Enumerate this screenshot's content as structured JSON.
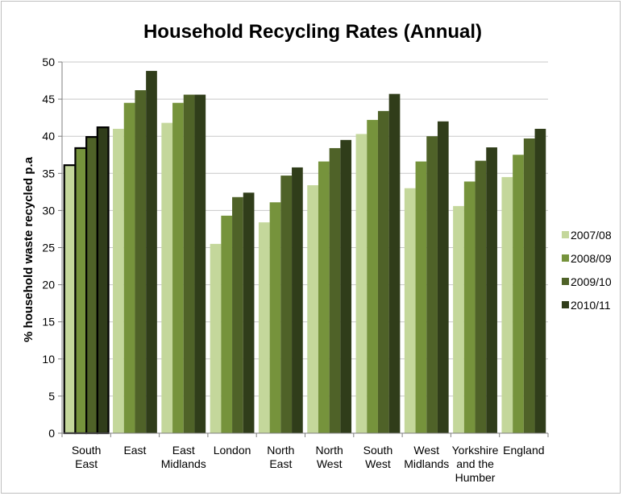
{
  "chart_data": {
    "type": "bar",
    "title": "Household Recycling Rates (Annual)",
    "ylabel": "% household waste recycled p.a",
    "xlabel": "",
    "ylim": [
      0,
      50
    ],
    "yticks": [
      0,
      5,
      10,
      15,
      20,
      25,
      30,
      35,
      40,
      45,
      50
    ],
    "grid": true,
    "legend": "right",
    "categories": [
      [
        "South",
        "East"
      ],
      [
        "East"
      ],
      [
        "East",
        "Midlands"
      ],
      [
        "London"
      ],
      [
        "North",
        "East"
      ],
      [
        "North",
        "West"
      ],
      [
        "South",
        "West"
      ],
      [
        "West",
        "Midlands"
      ],
      [
        "Yorkshire",
        "and the",
        "Humber"
      ],
      [
        "England"
      ]
    ],
    "highlighted_category": 0,
    "series": [
      {
        "name": "2007/08",
        "color": "#c4d79b",
        "values": [
          36.1,
          41.0,
          41.8,
          25.5,
          28.4,
          33.4,
          40.3,
          33.0,
          30.6,
          34.5
        ]
      },
      {
        "name": "2008/09",
        "color": "#76933c",
        "values": [
          38.4,
          44.5,
          44.5,
          29.3,
          31.1,
          36.6,
          42.2,
          36.6,
          33.9,
          37.5
        ]
      },
      {
        "name": "2009/10",
        "color": "#4f6228",
        "values": [
          39.9,
          46.2,
          45.6,
          31.8,
          34.7,
          38.4,
          43.4,
          40.0,
          36.7,
          39.7
        ]
      },
      {
        "name": "2010/11",
        "color": "#303d1a",
        "values": [
          41.2,
          48.8,
          45.6,
          32.4,
          35.8,
          39.5,
          45.7,
          42.0,
          38.5,
          41.0
        ]
      }
    ]
  }
}
